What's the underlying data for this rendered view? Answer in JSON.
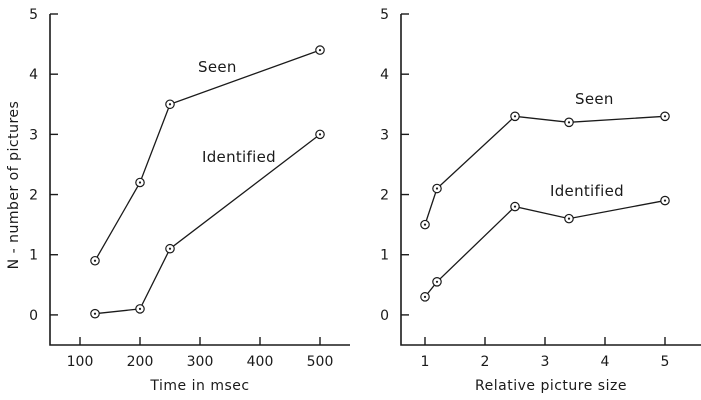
{
  "chart_data": [
    {
      "type": "line",
      "xlabel": "Time in msec",
      "ylabel": "N - number of pictures",
      "xlim": [
        50,
        550
      ],
      "ylim": [
        -0.5,
        5
      ],
      "xticks": [
        100,
        200,
        300,
        400,
        500
      ],
      "yticks": [
        0,
        1,
        2,
        3,
        4,
        5
      ],
      "series": [
        {
          "name": "Seen",
          "x": [
            125,
            200,
            250,
            500
          ],
          "y": [
            0.9,
            2.2,
            3.5,
            4.4
          ]
        },
        {
          "name": "Identified",
          "x": [
            125,
            200,
            250,
            500
          ],
          "y": [
            0.02,
            0.1,
            1.1,
            3.0
          ]
        }
      ]
    },
    {
      "type": "line",
      "xlabel": "Relative picture size",
      "ylabel": "",
      "xlim": [
        0.6,
        5.6
      ],
      "ylim": [
        -0.5,
        5
      ],
      "xticks": [
        1,
        2,
        3,
        4,
        5
      ],
      "yticks": [
        0,
        1,
        2,
        3,
        4,
        5
      ],
      "series": [
        {
          "name": "Seen",
          "x": [
            1.0,
            1.2,
            2.5,
            3.4,
            5.0
          ],
          "y": [
            1.5,
            2.1,
            3.3,
            3.2,
            3.3
          ]
        },
        {
          "name": "Identified",
          "x": [
            1.0,
            1.2,
            2.5,
            3.4,
            5.0
          ],
          "y": [
            0.3,
            0.55,
            1.8,
            1.6,
            1.9
          ]
        }
      ]
    }
  ]
}
